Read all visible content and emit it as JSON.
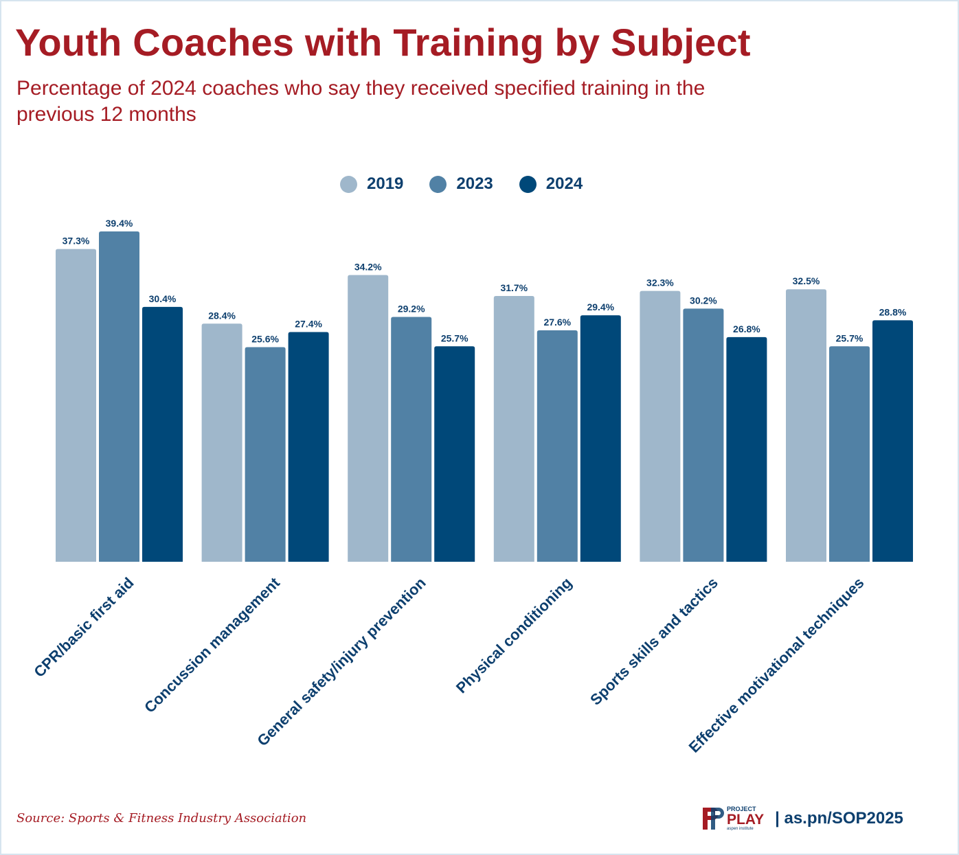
{
  "colors": {
    "title": "#a51c24",
    "navy": "#0d3f6e",
    "series": [
      "#9fb7cb",
      "#5181a5",
      "#004879"
    ]
  },
  "title": "Youth Coaches with Training by Subject",
  "subtitle": "Percentage of 2024 coaches who say they received specified training in the previous 12 months",
  "legend": [
    "2019",
    "2023",
    "2024"
  ],
  "source": "Source: Sports & Fitness Industry Association",
  "brand": {
    "logo_small": "PROJECT",
    "logo_big": "PLAY",
    "logo_tiny": "aspen institute",
    "url": "| as.pn/SOP2025"
  },
  "chart_data": {
    "type": "bar",
    "title": "Youth Coaches with Training by Subject",
    "categories": [
      "CPR/basic first aid",
      "Concussion management",
      "General safety/injury prevention",
      "Physical conditioning",
      "Sports skills and tactics",
      "Effective motivational techniques"
    ],
    "series": [
      {
        "name": "2019",
        "values": [
          37.3,
          28.4,
          34.2,
          31.7,
          32.3,
          32.5
        ]
      },
      {
        "name": "2023",
        "values": [
          39.4,
          25.6,
          29.2,
          27.6,
          30.2,
          25.7
        ]
      },
      {
        "name": "2024",
        "values": [
          30.4,
          27.4,
          25.7,
          29.4,
          26.8,
          28.8
        ]
      }
    ],
    "value_suffix": "%",
    "ylim": [
      0,
      39.4
    ],
    "grid": false,
    "xlabel": "",
    "ylabel": "",
    "legend_position": "top-center"
  }
}
